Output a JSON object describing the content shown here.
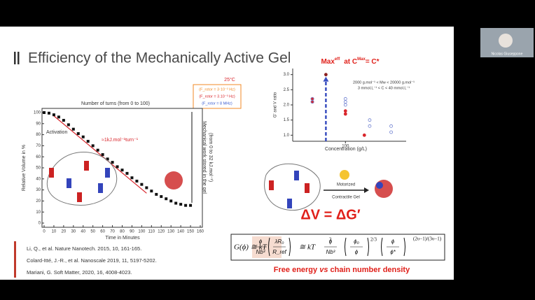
{
  "slide": {
    "title": "Efficiency of the Mechanically Active Gel",
    "left_chart": {
      "top_label": "Number of turns (from 0 to 100)",
      "temperature": "25°C",
      "legend": [
        {
          "text": "(F_rotor = 3·10⁻² Hz)",
          "color": "#f08a24"
        },
        {
          "text": "(F_rotor = 3.10⁻³ Hz)",
          "color": "#d9262c"
        },
        {
          "text": "(F_rotor = 8 MHz)",
          "color": "#3a5bd0"
        }
      ],
      "activation": "Activation",
      "rate": "≈1kJ.mol⁻¹turn⁻¹",
      "x_label": "Time in Minutes",
      "y_label": "Relative Volume in %",
      "right_label": [
        "Mechanical work stored in the gel",
        "(from 0 to 32 kJ.mol⁻¹)"
      ],
      "xlim": [
        0,
        160
      ],
      "ylim": [
        0,
        100
      ],
      "xticks": [
        0,
        10,
        20,
        30,
        40,
        50,
        60,
        70,
        80,
        90,
        100,
        110,
        120,
        130,
        140,
        150,
        160
      ],
      "yticks": [
        0,
        10,
        20,
        30,
        40,
        50,
        60,
        70,
        80,
        90,
        100
      ],
      "x": [
        0,
        5,
        10,
        15,
        20,
        25,
        30,
        35,
        40,
        45,
        50,
        55,
        60,
        65,
        70,
        75,
        80,
        85,
        90,
        95,
        100,
        105,
        110,
        115,
        120,
        125,
        130,
        135,
        140,
        145,
        150
      ],
      "values": [
        100,
        99.5,
        98,
        96,
        93,
        89,
        85,
        81,
        78,
        74,
        70,
        66,
        62,
        58,
        55,
        51,
        48,
        45,
        41,
        38,
        35,
        32,
        29,
        26,
        24,
        22,
        20,
        18,
        17,
        16,
        16
      ],
      "color": "#111111",
      "fit": {
        "x": [
          10,
          105
        ],
        "values": [
          97,
          27
        ],
        "color": "#d9262c"
      }
    },
    "right_chart": {
      "title": [
        "Max",
        "eff",
        "at C",
        "Max",
        "= C*"
      ],
      "y_label": "G' and V ratio",
      "x_label": "Concentration (g/L)",
      "note": [
        "2000 g.mol⁻¹ < Mw < 20000 g.mol⁻¹",
        "3 mmol.L⁻¹ < C < 40 mmol.L⁻¹"
      ],
      "xscale": "log",
      "xlim": [
        30,
        400
      ],
      "ylim": [
        0.8,
        3.2
      ],
      "xticks": [
        100
      ],
      "yticks": [
        {
          "value": 1,
          "label": "1.0"
        },
        1.5,
        {
          "value": 2,
          "label": "2.0"
        },
        2.5,
        {
          "value": 3,
          "label": "3.0"
        }
      ],
      "series": [
        {
          "color": "#d9262c",
          "filled": true,
          "x": [
            47,
            47,
            100,
            100,
            154
          ],
          "values": [
            2.2,
            2.1,
            1.8,
            1.7,
            1.0
          ]
        },
        {
          "color": "#6d7fd0",
          "filled": false,
          "x": [
            47,
            47,
            100,
            100,
            100,
            174,
            174,
            284,
            284
          ],
          "values": [
            2.2,
            2.1,
            2.2,
            2.1,
            2.0,
            1.5,
            1.3,
            1.3,
            1.1
          ]
        },
        {
          "color": "#8b2020",
          "filled": true,
          "x": [
            64
          ],
          "values": [
            3.0
          ]
        }
      ]
    },
    "scheme": {
      "label": [
        "Motorized",
        "Contractile Gel"
      ],
      "equation": "ΔV = ΔG′"
    },
    "formula": {
      "lhs": "G(ϕ) ≅ kT",
      "f1": [
        "ϕ",
        "Nb³"
      ],
      "f2": [
        "λR₀",
        "R_ref"
      ],
      "p2": "2",
      "mid": "≅ kT",
      "f3": [
        "ϕ",
        "Nb³"
      ],
      "f4": [
        "ϕ₀",
        "ϕ"
      ],
      "p4": "2/3",
      "f5": [
        "ϕ",
        "ϕ*"
      ],
      "p5": "(2υ−1)/(3υ−1)"
    },
    "caption": [
      "Free energy ",
      "vs",
      " chain number density"
    ],
    "references": [
      "Li, Q., et al. Nature Nanotech. 2015, 10, 161-165.",
      "Colard-Itté, J.-R., et al. Nanoscale 2019, 11, 5197-5202.",
      "Mariani, G. Soft Matter, 2020, 16, 4008-4023."
    ]
  },
  "participant": {
    "name": "Nicolas Giuseppone"
  }
}
